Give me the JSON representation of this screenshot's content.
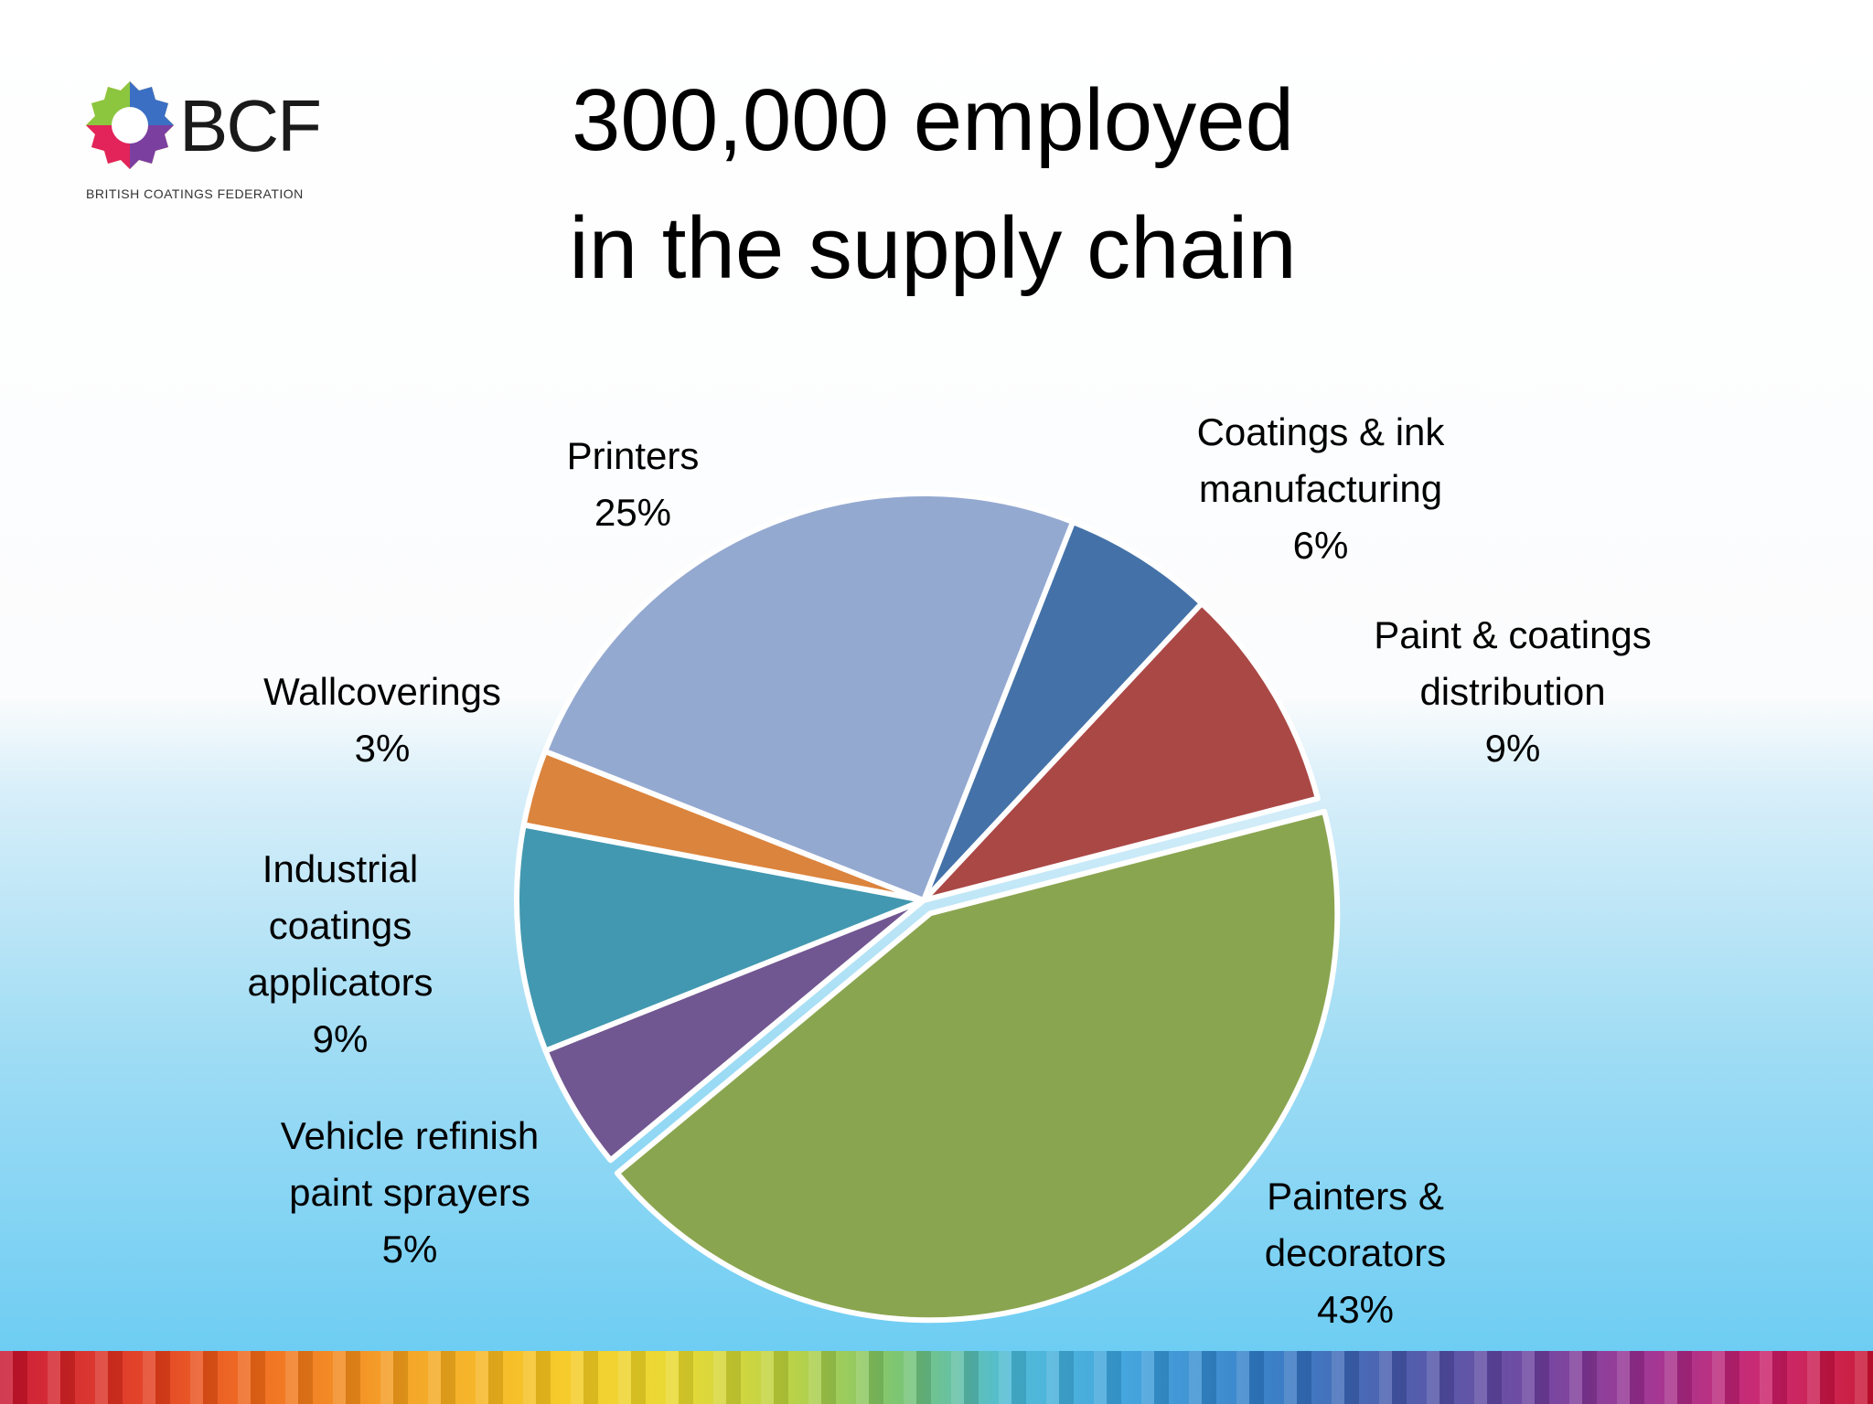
{
  "logo": {
    "name": "BCF",
    "subtitle": "BRITISH COATINGS FEDERATION"
  },
  "title": {
    "line1": "300,000 employed",
    "line2": "in the supply chain"
  },
  "chart_data": {
    "type": "pie",
    "title": "300,000 employed in the supply chain",
    "start": "Coatings & ink manufacturing slice begins near 12 o'clock, slices proceed clockwise",
    "slices": [
      {
        "label": "Coatings & ink manufacturing",
        "value": 6,
        "color": "#4472a8"
      },
      {
        "label": "Paint & coatings distribution",
        "value": 9,
        "color": "#aa4846"
      },
      {
        "label": "Painters & decorators",
        "value": 43,
        "color": "#8aa550"
      },
      {
        "label": "Vehicle refinish paint sprayers",
        "value": 5,
        "color": "#715791"
      },
      {
        "label": "Industrial coatings applicators",
        "value": 9,
        "color": "#4298b0"
      },
      {
        "label": "Wallcoverings",
        "value": 3,
        "color": "#db843d"
      },
      {
        "label": "Printers",
        "value": 25,
        "color": "#94a9d0"
      }
    ],
    "data_labels": [
      {
        "lines": [
          "Coatings & ink",
          "manufacturing",
          "6%"
        ]
      },
      {
        "lines": [
          "Paint & coatings",
          "distribution",
          "9%"
        ]
      },
      {
        "lines": [
          "Painters &",
          "decorators",
          "43%"
        ]
      },
      {
        "lines": [
          "Vehicle refinish",
          "paint sprayers",
          "5%"
        ]
      },
      {
        "lines": [
          "Industrial",
          "coatings",
          "applicators",
          "9%"
        ]
      },
      {
        "lines": [
          "Wallcoverings",
          "3%"
        ]
      },
      {
        "lines": [
          "Printers",
          "25%"
        ]
      }
    ],
    "legend": "none"
  }
}
